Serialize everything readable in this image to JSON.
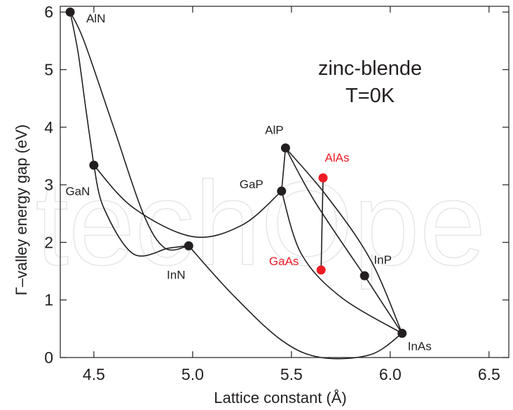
{
  "chart_data": {
    "type": "scatter",
    "xlabel": "Lattice constant (Å)",
    "ylabel": "Γ–valley energy gap (eV)",
    "xlim": [
      4.33,
      6.6
    ],
    "ylim": [
      0,
      6.1
    ],
    "x_ticks": [
      "4.5",
      "5.0",
      "5.5",
      "6.0",
      "6.5"
    ],
    "y_ticks": [
      "0",
      "1",
      "2",
      "3",
      "4",
      "5",
      "6"
    ],
    "annotation_lines": [
      "zinc-blende",
      "T=0K"
    ],
    "points": [
      {
        "label": "AlN",
        "x": 4.38,
        "y": 6.0,
        "color": "#231f20"
      },
      {
        "label": "GaN",
        "x": 4.5,
        "y": 3.34,
        "color": "#231f20"
      },
      {
        "label": "InN",
        "x": 4.98,
        "y": 1.94,
        "color": "#231f20"
      },
      {
        "label": "AlP",
        "x": 5.47,
        "y": 3.64,
        "color": "#231f20"
      },
      {
        "label": "GaP",
        "x": 5.45,
        "y": 2.89,
        "color": "#231f20"
      },
      {
        "label": "InP",
        "x": 5.87,
        "y": 1.42,
        "color": "#231f20"
      },
      {
        "label": "InAs",
        "x": 6.06,
        "y": 0.42,
        "color": "#231f20"
      },
      {
        "label": "AlAs",
        "x": 5.66,
        "y": 3.12,
        "color": "#ed1c24"
      },
      {
        "label": "GaAs",
        "x": 5.65,
        "y": 1.52,
        "color": "#ed1c24"
      }
    ],
    "curves": [
      {
        "from": "AlN",
        "to": "GaN",
        "color": "#231f20",
        "via": [
          [
            4.42,
            5.3
          ],
          [
            4.46,
            4.3
          ]
        ]
      },
      {
        "from": "AlN",
        "to": "InN",
        "color": "#231f20",
        "via": [
          [
            4.45,
            5.5
          ],
          [
            4.6,
            4.0
          ],
          [
            4.75,
            2.5
          ],
          [
            4.86,
            1.9
          ]
        ]
      },
      {
        "from": "GaN",
        "to": "InN",
        "color": "#231f20",
        "via": [
          [
            4.55,
            2.6
          ],
          [
            4.7,
            1.8
          ],
          [
            4.88,
            1.9
          ]
        ]
      },
      {
        "from": "GaN",
        "to": "GaP",
        "color": "#231f20",
        "via": [
          [
            4.7,
            2.6
          ],
          [
            5.0,
            2.1
          ],
          [
            5.25,
            2.3
          ]
        ]
      },
      {
        "from": "InN",
        "to": "InAs",
        "color": "#231f20",
        "via": [
          [
            5.2,
            1.1
          ],
          [
            5.45,
            0.3
          ],
          [
            5.65,
            0.0
          ],
          [
            5.9,
            0.05
          ]
        ]
      },
      {
        "from": "AlP",
        "to": "GaP",
        "color": "#231f20",
        "via": []
      },
      {
        "from": "AlP",
        "to": "InP",
        "color": "#231f20",
        "via": [
          [
            5.62,
            2.7
          ]
        ]
      },
      {
        "from": "AlP",
        "to": "InAs",
        "color": "#231f20",
        "via": [
          [
            5.68,
            2.8
          ],
          [
            5.9,
            1.7
          ]
        ]
      },
      {
        "from": "GaP",
        "to": "InAs",
        "color": "#231f20",
        "via": [
          [
            5.55,
            1.8
          ],
          [
            5.75,
            1.05
          ]
        ]
      },
      {
        "from": "InP",
        "to": "InAs",
        "color": "#231f20",
        "via": []
      },
      {
        "from": "AlAs",
        "to": "GaAs",
        "color": "#ed1c24",
        "via": []
      }
    ],
    "watermark": "IntechOpen"
  }
}
